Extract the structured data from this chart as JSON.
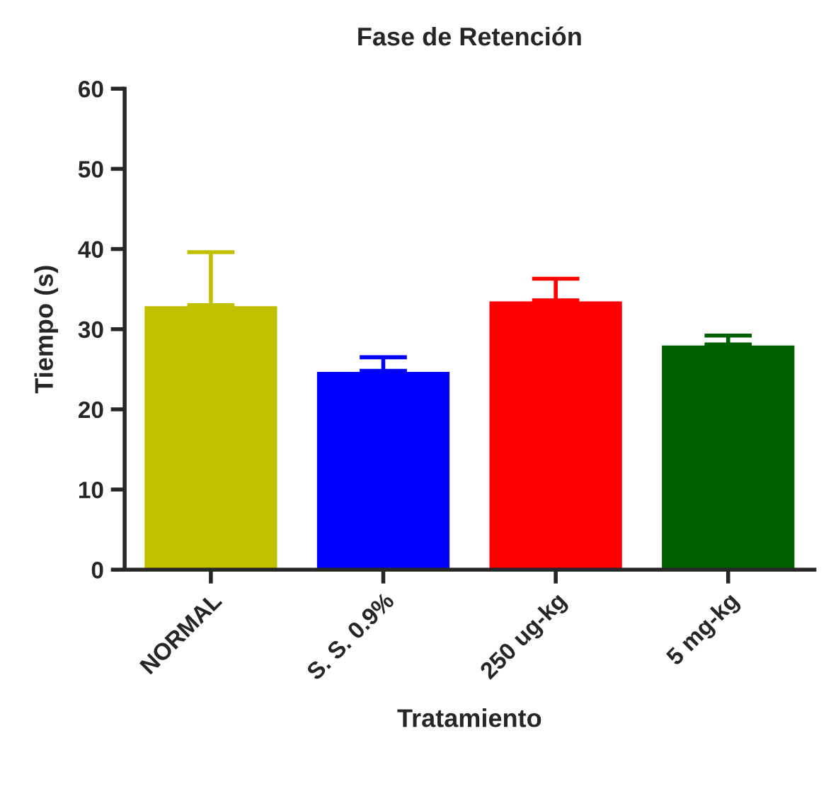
{
  "chart_data": {
    "type": "bar",
    "title": "Fase de Retención",
    "xlabel": "Tratamiento",
    "ylabel": "Tiempo (s)",
    "categories": [
      "NORMAL",
      "S. S. 0.9%",
      "250 ug-kg",
      "5 mg-kg"
    ],
    "values": [
      33,
      24.8,
      33.6,
      28.1
    ],
    "colors": [
      "#c0c000",
      "#0000ff",
      "#ff0000",
      "#006000"
    ],
    "errors": [
      [
        33,
        39.6
      ],
      [
        24.8,
        26.5
      ],
      [
        33.6,
        36.3
      ],
      [
        28.1,
        29.2
      ]
    ],
    "ylim": [
      0,
      60
    ],
    "yticks": [
      0,
      10,
      20,
      30,
      40,
      50,
      60
    ],
    "grid": false,
    "legend": false
  }
}
